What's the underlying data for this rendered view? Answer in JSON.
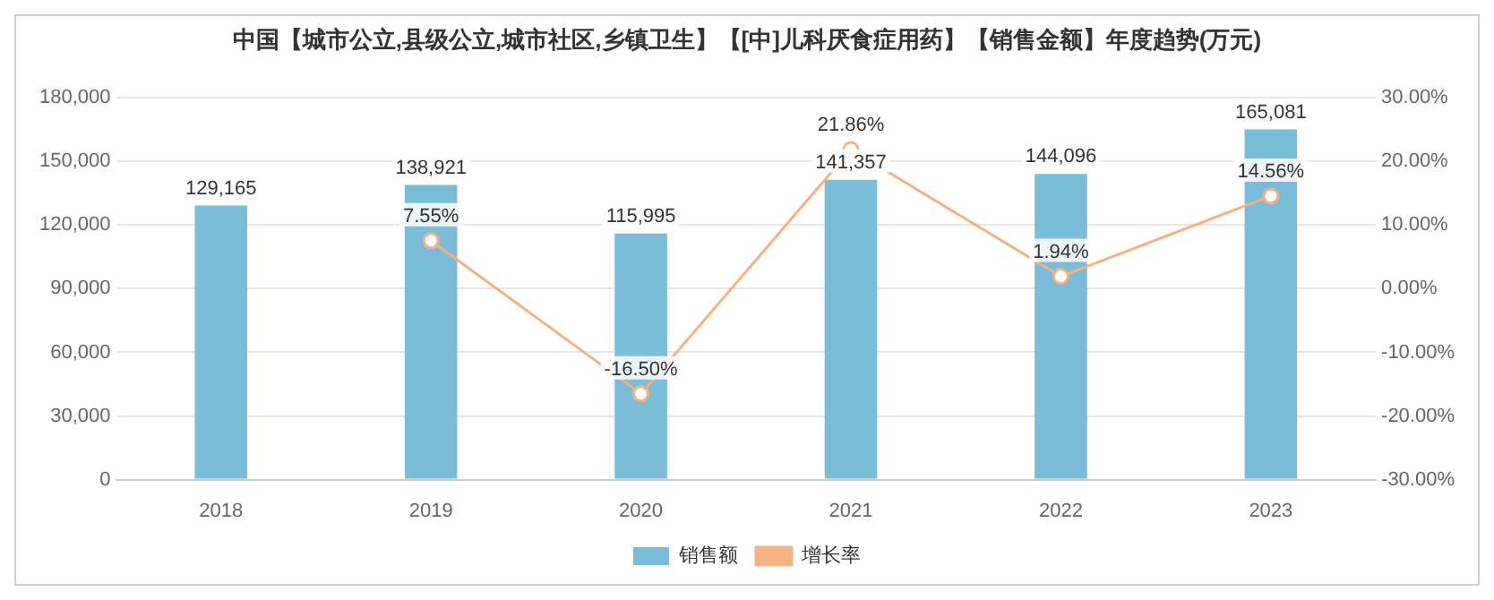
{
  "chart_data": {
    "type": "bar",
    "title": "中国【城市公立,县级公立,城市社区,乡镇卫生】【[中]儿科厌食症用药】【销售金额】年度趋势(万元)",
    "categories": [
      "2018",
      "2019",
      "2020",
      "2021",
      "2022",
      "2023"
    ],
    "series": [
      {
        "name": "销售额",
        "color": "#7bbcd9",
        "values": [
          129165,
          138921,
          115995,
          141357,
          144096,
          165081
        ],
        "value_labels": [
          "129,165",
          "138,921",
          "115,995",
          "141,357",
          "144,096",
          "165,081"
        ]
      },
      {
        "name": "增长率",
        "type": "line",
        "axis": "y2",
        "color": "#f4b183",
        "marker": "circle",
        "values": [
          null,
          7.55,
          -16.5,
          21.86,
          1.94,
          14.56
        ],
        "value_labels": [
          null,
          "7.55%",
          "-16.50%",
          "21.86%",
          "1.94%",
          "14.56%"
        ]
      }
    ],
    "ylim": [
      0,
      180000
    ],
    "yticks": [
      0,
      {
        "value": 30000,
        "label": "30,000"
      },
      {
        "value": 60000,
        "label": "60,000"
      },
      {
        "value": 90000,
        "label": "90,000"
      },
      {
        "value": 120000,
        "label": "120,000"
      },
      {
        "value": 150000,
        "label": "150,000"
      },
      {
        "value": 180000,
        "label": "180,000"
      }
    ],
    "y2lim": [
      -30,
      30
    ],
    "y2ticks": [
      {
        "value": -30,
        "label": "-30.00%"
      },
      {
        "value": -20,
        "label": "-20.00%"
      },
      {
        "value": -10,
        "label": "-10.00%"
      },
      {
        "value": 0,
        "label": "0.00%"
      },
      {
        "value": 10,
        "label": "10.00%"
      },
      {
        "value": 20,
        "label": "20.00%"
      },
      {
        "value": 30,
        "label": "30.00%"
      }
    ],
    "grid": "y",
    "legend": "bottom"
  }
}
